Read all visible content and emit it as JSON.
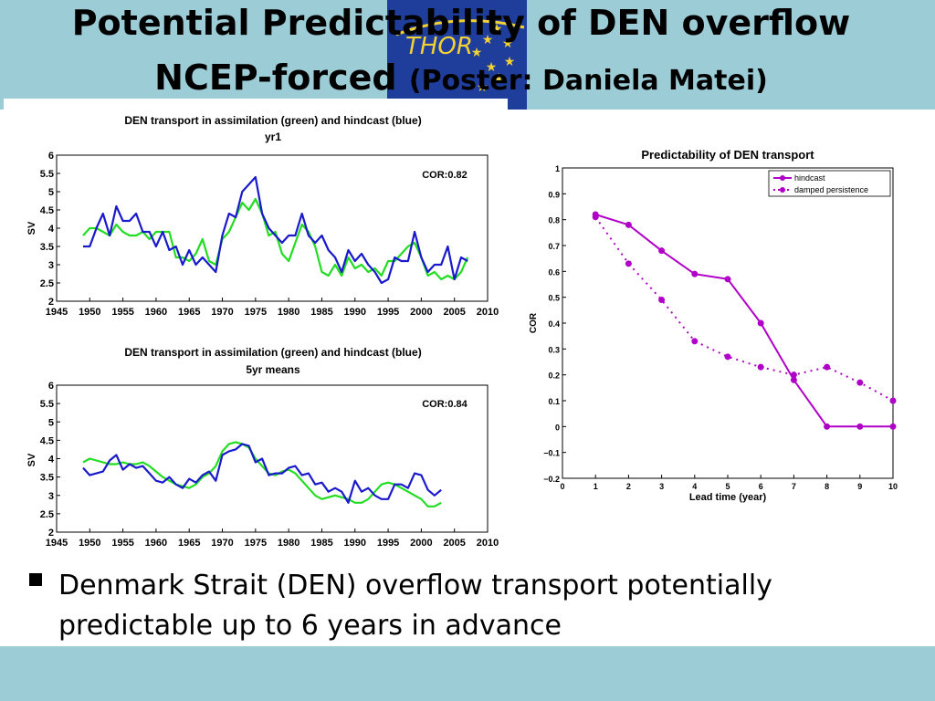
{
  "slide": {
    "title_line1": "Potential Predictability of DEN overflow",
    "title_line2_main": "NCEP-forced ",
    "title_line2_small": "(Poster: Daniela Matei)",
    "logo_text": "THOR",
    "bullet_text": "Denmark Strait (DEN) overflow transport potentially predictable up to 6 years in advance",
    "colors": {
      "band": "#9cccd6",
      "logo_bg": "#1f3d9a",
      "green": "#22dd22",
      "blue": "#1a1acc",
      "magenta": "#b000c8"
    }
  },
  "chart_data": [
    {
      "type": "line",
      "title": "DEN transport in assimilation (green) and hindcast (blue)",
      "subtitle": "yr1",
      "ylabel": "SV",
      "xlabel": "",
      "xlim": [
        1945,
        2010
      ],
      "ylim": [
        2,
        6
      ],
      "xticks": [
        "1945",
        "1950",
        "1955",
        "1960",
        "1965",
        "1970",
        "1975",
        "1980",
        "1985",
        "1990",
        "1995",
        "2000",
        "2005",
        "2010"
      ],
      "yticks": [
        "2",
        "2.5",
        "3",
        "3.5",
        "4",
        "4.5",
        "5",
        "5.5",
        "6"
      ],
      "annotation": "COR:0.82",
      "series": [
        {
          "color": "#22dd22",
          "x": [
            1949,
            1950,
            1951,
            1952,
            1953,
            1954,
            1955,
            1956,
            1957,
            1958,
            1959,
            1960,
            1961,
            1962,
            1963,
            1964,
            1965,
            1966,
            1967,
            1968,
            1969,
            1970,
            1971,
            1972,
            1973,
            1974,
            1975,
            1976,
            1977,
            1978,
            1979,
            1980,
            1981,
            1982,
            1983,
            1984,
            1985,
            1986,
            1987,
            1988,
            1989,
            1990,
            1991,
            1992,
            1993,
            1994,
            1995,
            1996,
            1997,
            1998,
            1999,
            2000,
            2001,
            2002,
            2003,
            2004,
            2005,
            2006,
            2007
          ],
          "y": [
            3.8,
            4.0,
            4.0,
            3.9,
            3.8,
            4.1,
            3.9,
            3.8,
            3.8,
            3.9,
            3.7,
            3.9,
            3.9,
            3.9,
            3.2,
            3.2,
            3.1,
            3.3,
            3.7,
            3.1,
            3.0,
            3.7,
            3.9,
            4.3,
            4.7,
            4.5,
            4.8,
            4.4,
            3.8,
            3.9,
            3.3,
            3.1,
            3.6,
            4.1,
            3.9,
            3.5,
            2.8,
            2.7,
            3.0,
            2.7,
            3.2,
            2.9,
            3.0,
            2.8,
            2.9,
            2.7,
            3.1,
            3.1,
            3.3,
            3.5,
            3.6,
            3.2,
            2.7,
            2.8,
            2.6,
            2.7,
            2.6,
            2.8,
            3.2
          ]
        },
        {
          "color": "#1a1acc",
          "x": [
            1949,
            1950,
            1951,
            1952,
            1953,
            1954,
            1955,
            1956,
            1957,
            1958,
            1959,
            1960,
            1961,
            1962,
            1963,
            1964,
            1965,
            1966,
            1967,
            1968,
            1969,
            1970,
            1971,
            1972,
            1973,
            1974,
            1975,
            1976,
            1977,
            1978,
            1979,
            1980,
            1981,
            1982,
            1983,
            1984,
            1985,
            1986,
            1987,
            1988,
            1989,
            1990,
            1991,
            1992,
            1993,
            1994,
            1995,
            1996,
            1997,
            1998,
            1999,
            2000,
            2001,
            2002,
            2003,
            2004,
            2005,
            2006,
            2007
          ],
          "y": [
            3.5,
            3.5,
            4.0,
            4.4,
            3.8,
            4.6,
            4.2,
            4.2,
            4.4,
            3.9,
            3.9,
            3.5,
            3.9,
            3.4,
            3.5,
            3.0,
            3.4,
            3.0,
            3.2,
            3.0,
            2.8,
            3.8,
            4.4,
            4.3,
            5.0,
            5.2,
            5.4,
            4.4,
            4.0,
            3.8,
            3.6,
            3.8,
            3.8,
            4.4,
            3.8,
            3.6,
            3.8,
            3.4,
            3.2,
            2.8,
            3.4,
            3.1,
            3.3,
            3.0,
            2.8,
            2.5,
            2.6,
            3.2,
            3.1,
            3.1,
            3.9,
            3.2,
            2.8,
            3.0,
            3.0,
            3.5,
            2.6,
            3.2,
            3.1
          ]
        }
      ]
    },
    {
      "type": "line",
      "title": "DEN transport in assimilation (green) and hindcast (blue)",
      "subtitle": "5yr means",
      "ylabel": "SV",
      "xlabel": "",
      "xlim": [
        1945,
        2010
      ],
      "ylim": [
        2,
        6
      ],
      "xticks": [
        "1945",
        "1950",
        "1955",
        "1960",
        "1965",
        "1970",
        "1975",
        "1980",
        "1985",
        "1990",
        "1995",
        "2000",
        "2005",
        "2010"
      ],
      "yticks": [
        "2",
        "2.5",
        "3",
        "3.5",
        "4",
        "4.5",
        "5",
        "5.5",
        "6"
      ],
      "annotation": "COR:0.84",
      "series": [
        {
          "color": "#22dd22",
          "x": [
            1949,
            1950,
            1951,
            1952,
            1953,
            1954,
            1955,
            1956,
            1957,
            1958,
            1959,
            1960,
            1961,
            1962,
            1963,
            1964,
            1965,
            1966,
            1967,
            1968,
            1969,
            1970,
            1971,
            1972,
            1973,
            1974,
            1975,
            1976,
            1977,
            1978,
            1979,
            1980,
            1981,
            1982,
            1983,
            1984,
            1985,
            1986,
            1987,
            1988,
            1989,
            1990,
            1991,
            1992,
            1993,
            1994,
            1995,
            1996,
            1997,
            1998,
            1999,
            2000,
            2001,
            2002,
            2003
          ],
          "y": [
            3.9,
            4.0,
            3.95,
            3.9,
            3.85,
            3.85,
            3.9,
            3.85,
            3.85,
            3.9,
            3.8,
            3.65,
            3.5,
            3.4,
            3.3,
            3.25,
            3.2,
            3.3,
            3.5,
            3.6,
            3.8,
            4.2,
            4.4,
            4.45,
            4.4,
            4.3,
            4.0,
            3.8,
            3.6,
            3.55,
            3.65,
            3.7,
            3.6,
            3.4,
            3.2,
            3.0,
            2.9,
            2.95,
            3.0,
            2.95,
            2.9,
            2.8,
            2.8,
            2.9,
            3.1,
            3.3,
            3.35,
            3.3,
            3.2,
            3.1,
            3.0,
            2.9,
            2.7,
            2.7,
            2.8
          ]
        },
        {
          "color": "#1a1acc",
          "x": [
            1949,
            1950,
            1951,
            1952,
            1953,
            1954,
            1955,
            1956,
            1957,
            1958,
            1959,
            1960,
            1961,
            1962,
            1963,
            1964,
            1965,
            1966,
            1967,
            1968,
            1969,
            1970,
            1971,
            1972,
            1973,
            1974,
            1975,
            1976,
            1977,
            1978,
            1979,
            1980,
            1981,
            1982,
            1983,
            1984,
            1985,
            1986,
            1987,
            1988,
            1989,
            1990,
            1991,
            1992,
            1993,
            1994,
            1995,
            1996,
            1997,
            1998,
            1999,
            2000,
            2001,
            2002,
            2003
          ],
          "y": [
            3.75,
            3.55,
            3.6,
            3.65,
            3.95,
            4.1,
            3.7,
            3.85,
            3.75,
            3.8,
            3.6,
            3.4,
            3.35,
            3.5,
            3.3,
            3.2,
            3.45,
            3.35,
            3.55,
            3.65,
            3.4,
            4.1,
            4.2,
            4.25,
            4.4,
            4.35,
            3.9,
            4.0,
            3.55,
            3.6,
            3.6,
            3.75,
            3.8,
            3.55,
            3.6,
            3.3,
            3.35,
            3.1,
            3.2,
            3.1,
            2.8,
            3.4,
            3.1,
            3.2,
            3.0,
            2.9,
            2.9,
            3.3,
            3.3,
            3.2,
            3.6,
            3.55,
            3.15,
            3.0,
            3.15
          ]
        }
      ]
    },
    {
      "type": "line",
      "title": "Predictability of DEN transport",
      "xlabel": "Lead time (year)",
      "ylabel": "COR",
      "xlim": [
        0,
        10
      ],
      "ylim": [
        -0.2,
        1
      ],
      "xticks": [
        "0",
        "1",
        "2",
        "3",
        "4",
        "5",
        "6",
        "7",
        "8",
        "9",
        "10"
      ],
      "yticks": [
        "−0.2",
        "−0.1",
        "0",
        "0.1",
        "0.2",
        "0.3",
        "0.4",
        "0.5",
        "0.6",
        "0.7",
        "0.8",
        "0.9",
        "1"
      ],
      "legend_position": "top-right",
      "series": [
        {
          "name": "hindcast",
          "color": "#b000c8",
          "style": "solid",
          "x": [
            1,
            2,
            3,
            4,
            5,
            6,
            7,
            8,
            9,
            10
          ],
          "y": [
            0.82,
            0.78,
            0.68,
            0.59,
            0.57,
            0.4,
            0.18,
            0.0,
            0.0,
            0.0
          ]
        },
        {
          "name": "damped persistence",
          "color": "#b000c8",
          "style": "dotted",
          "x": [
            1,
            2,
            3,
            4,
            5,
            6,
            7,
            8,
            9,
            10
          ],
          "y": [
            0.81,
            0.63,
            0.49,
            0.33,
            0.27,
            0.23,
            0.2,
            0.23,
            0.17,
            0.1
          ]
        }
      ]
    }
  ]
}
